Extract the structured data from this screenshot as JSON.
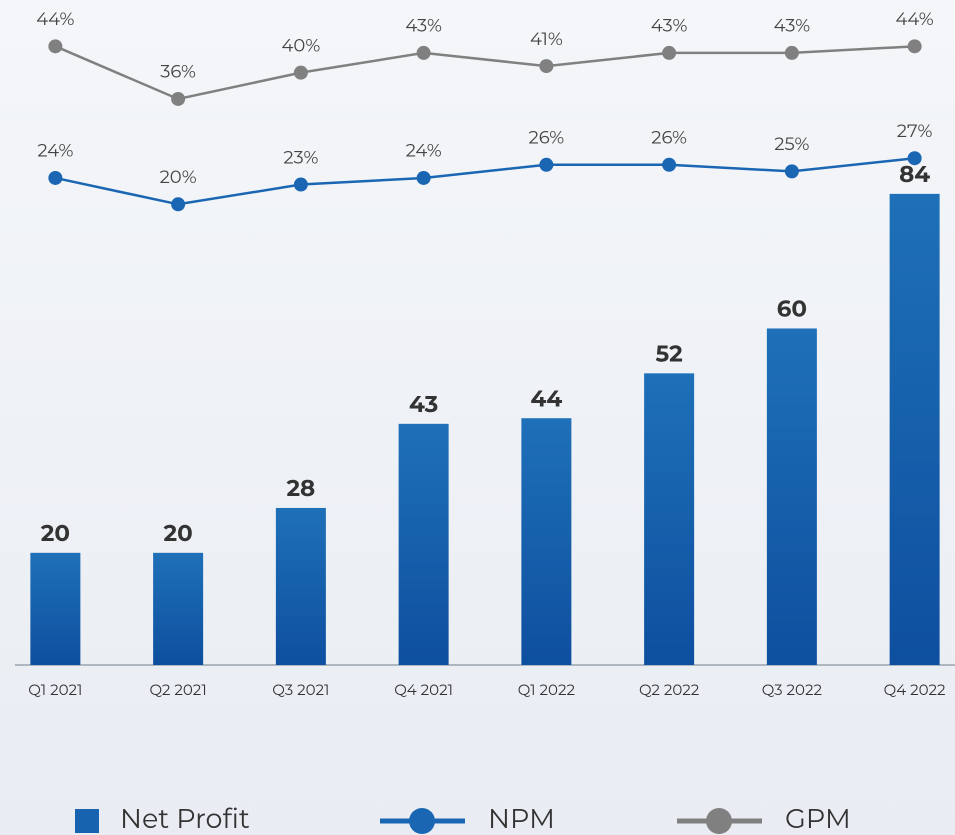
{
  "chart_data": {
    "type": "bar",
    "categories": [
      "Q1 2021",
      "Q2 2021",
      "Q3 2021",
      "Q4 2021",
      "Q1 2022",
      "Q2 2022",
      "Q3 2022",
      "Q4 2022"
    ],
    "series": [
      {
        "name": "Net Profit",
        "type": "bar",
        "color": "#1763b0",
        "values": [
          20,
          20,
          28,
          43,
          44,
          52,
          60,
          84
        ]
      },
      {
        "name": "NPM",
        "type": "line",
        "axis": "y2",
        "color": "#1a66b3",
        "values": [
          24,
          20,
          23,
          24,
          26,
          26,
          25,
          27
        ],
        "value_labels": [
          "24%",
          "20%",
          "23%",
          "24%",
          "26%",
          "26%",
          "25%",
          "27%"
        ]
      },
      {
        "name": "GPM",
        "type": "line",
        "axis": "y2",
        "color": "#808080",
        "values": [
          44,
          36,
          40,
          43,
          41,
          43,
          43,
          44
        ],
        "value_labels": [
          "44%",
          "36%",
          "40%",
          "43%",
          "41%",
          "43%",
          "43%",
          "44%"
        ]
      }
    ],
    "ylim": [
      0,
      115
    ],
    "y2lim": [
      -50,
      48
    ],
    "legend": "bottom"
  }
}
